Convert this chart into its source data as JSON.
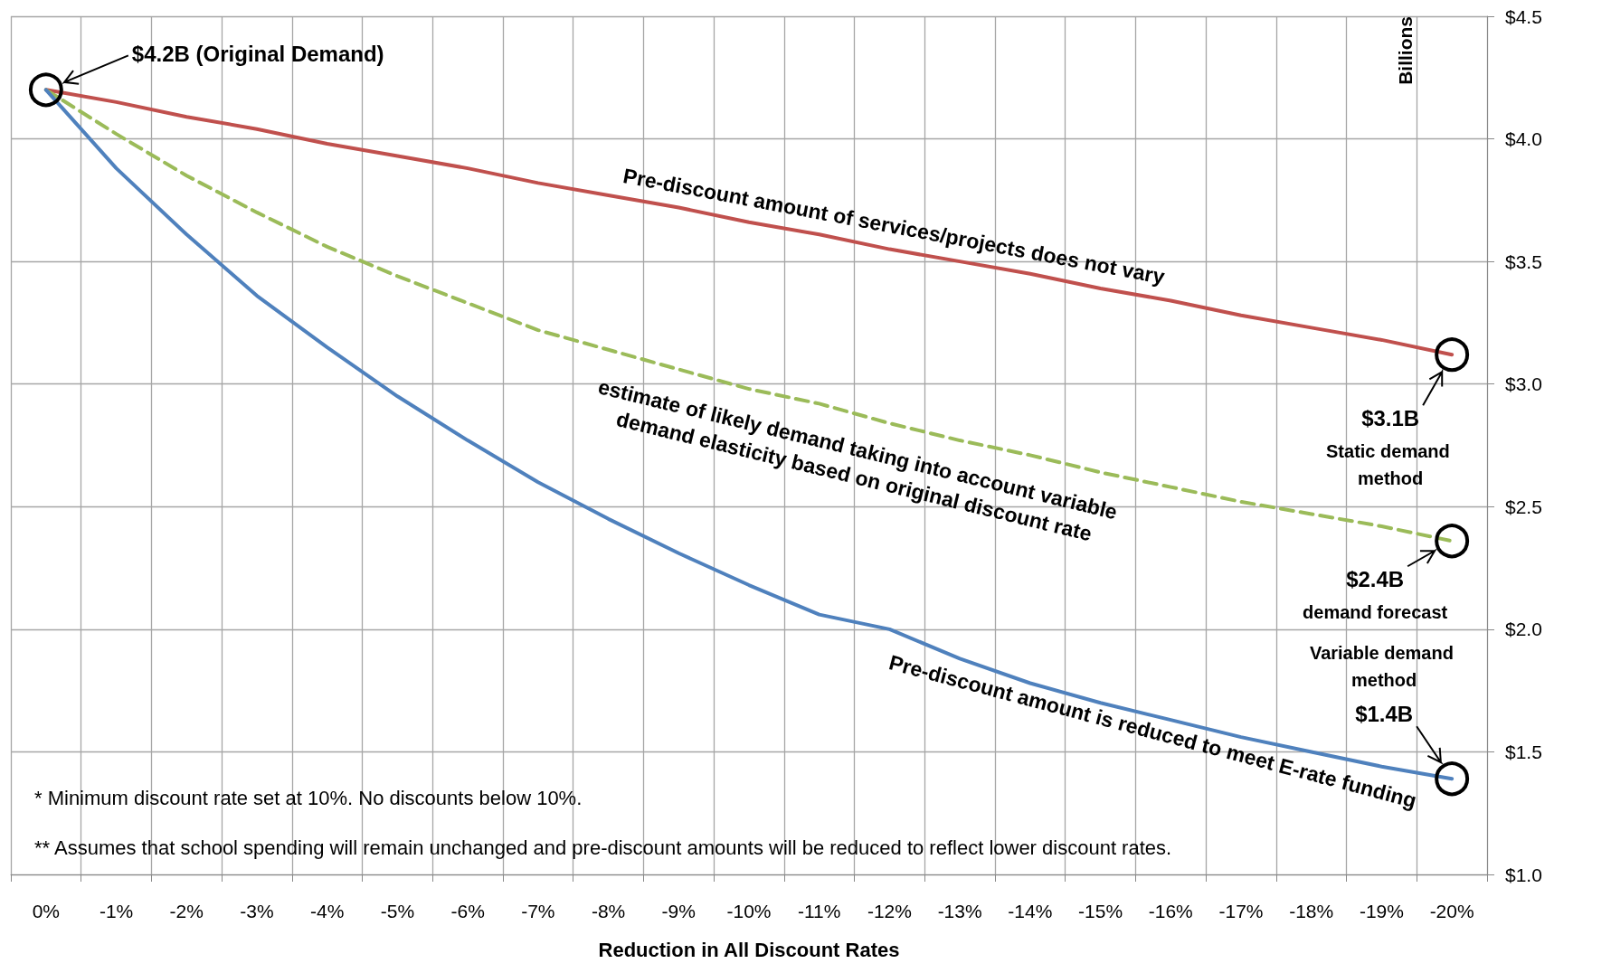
{
  "chart_data": {
    "type": "line",
    "xlabel": "Reduction in All Discount Rates",
    "ylabel": "Billions",
    "categories": [
      "0%",
      "-1%",
      "-2%",
      "-3%",
      "-4%",
      "-5%",
      "-6%",
      "-7%",
      "-8%",
      "-9%",
      "-10%",
      "-11%",
      "-12%",
      "-13%",
      "-14%",
      "-15%",
      "-16%",
      "-17%",
      "-18%",
      "-19%",
      "-20%"
    ],
    "series": [
      {
        "name": "Pre-discount amount of services/projects does not vary",
        "color": "#c0504d",
        "line_style": "solid",
        "values": [
          4.2,
          4.15,
          4.09,
          4.04,
          3.98,
          3.93,
          3.88,
          3.82,
          3.77,
          3.72,
          3.66,
          3.61,
          3.55,
          3.5,
          3.45,
          3.39,
          3.34,
          3.28,
          3.23,
          3.18,
          3.12
        ]
      },
      {
        "name": "estimate of likely demand taking into account variable demand elasticity based on original discount rate",
        "color": "#9bbb59",
        "line_style": "dashed",
        "values": [
          4.2,
          4.02,
          3.85,
          3.7,
          3.56,
          3.44,
          3.33,
          3.22,
          3.14,
          3.06,
          2.98,
          2.92,
          2.84,
          2.77,
          2.71,
          2.64,
          2.58,
          2.52,
          2.47,
          2.42,
          2.36
        ]
      },
      {
        "name": "Pre-discount amount is reduced to meet E-rate funding",
        "color": "#4f81bd",
        "line_style": "solid",
        "values": [
          4.2,
          3.88,
          3.61,
          3.36,
          3.15,
          2.95,
          2.77,
          2.6,
          2.45,
          2.31,
          2.18,
          2.06,
          2.0,
          1.88,
          1.78,
          1.7,
          1.63,
          1.56,
          1.5,
          1.44,
          1.39
        ]
      }
    ],
    "ylim": [
      1.0,
      4.5
    ],
    "yticks": [
      {
        "value": 1.0,
        "label": "$1.0"
      },
      {
        "value": 1.5,
        "label": "$1.5"
      },
      {
        "value": 2.0,
        "label": "$2.0"
      },
      {
        "value": 2.5,
        "label": "$2.5"
      },
      {
        "value": 3.0,
        "label": "$3.0"
      },
      {
        "value": 3.5,
        "label": "$3.5"
      },
      {
        "value": 4.0,
        "label": "$4.0"
      },
      {
        "value": 4.5,
        "label": "$4.5"
      }
    ],
    "grid": true,
    "marker": "none",
    "annotations": [
      "$4.2B (Original Demand)",
      {
        "text": "$3.1B",
        "x": "-20%",
        "y": 3.12
      },
      "Static demand method",
      {
        "text": "$2.4B",
        "x": "-20%",
        "y": 2.36
      },
      "demand forecast",
      "Variable demand method",
      "$1.4B",
      "* Minimum discount rate set at 10%. No discounts below 10%.",
      "** Assumes that school spending will remain unchanged and pre-discount amounts will be reduced to reflect lower discount rates."
    ]
  }
}
